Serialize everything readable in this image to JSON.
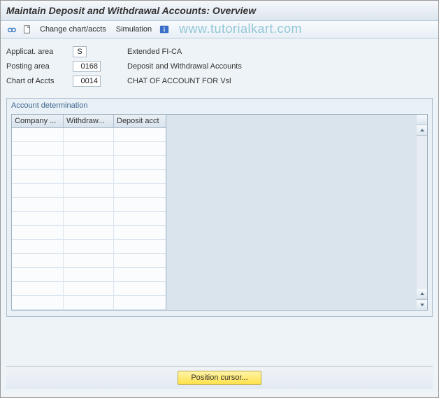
{
  "window": {
    "title": "Maintain Deposit and Withdrawal Accounts: Overview"
  },
  "toolbar": {
    "change_chart_label": "Change chart/accts",
    "simulation_label": "Simulation"
  },
  "watermark": "www.tutorialkart.com",
  "fields": {
    "application_area": {
      "label": "Applicat. area",
      "value": "S",
      "desc": "Extended FI-CA"
    },
    "posting_area": {
      "label": "Posting area",
      "value": "0168",
      "desc": "Deposit and Withdrawal Accounts"
    },
    "chart_of_accts": {
      "label": "Chart of Accts",
      "value": "0014",
      "desc": "CHAT OF ACCOUNT FOR Vsl"
    }
  },
  "groupbox": {
    "title": "Account determination",
    "columns": [
      "Company ...",
      "Withdraw...",
      "Deposit acct"
    ],
    "row_count": 13
  },
  "footer": {
    "position_cursor_label": "Position cursor..."
  },
  "colors": {
    "accent": "#3a668e",
    "button_bg": "#ffe24b",
    "panel_bg": "#eef3f7"
  }
}
